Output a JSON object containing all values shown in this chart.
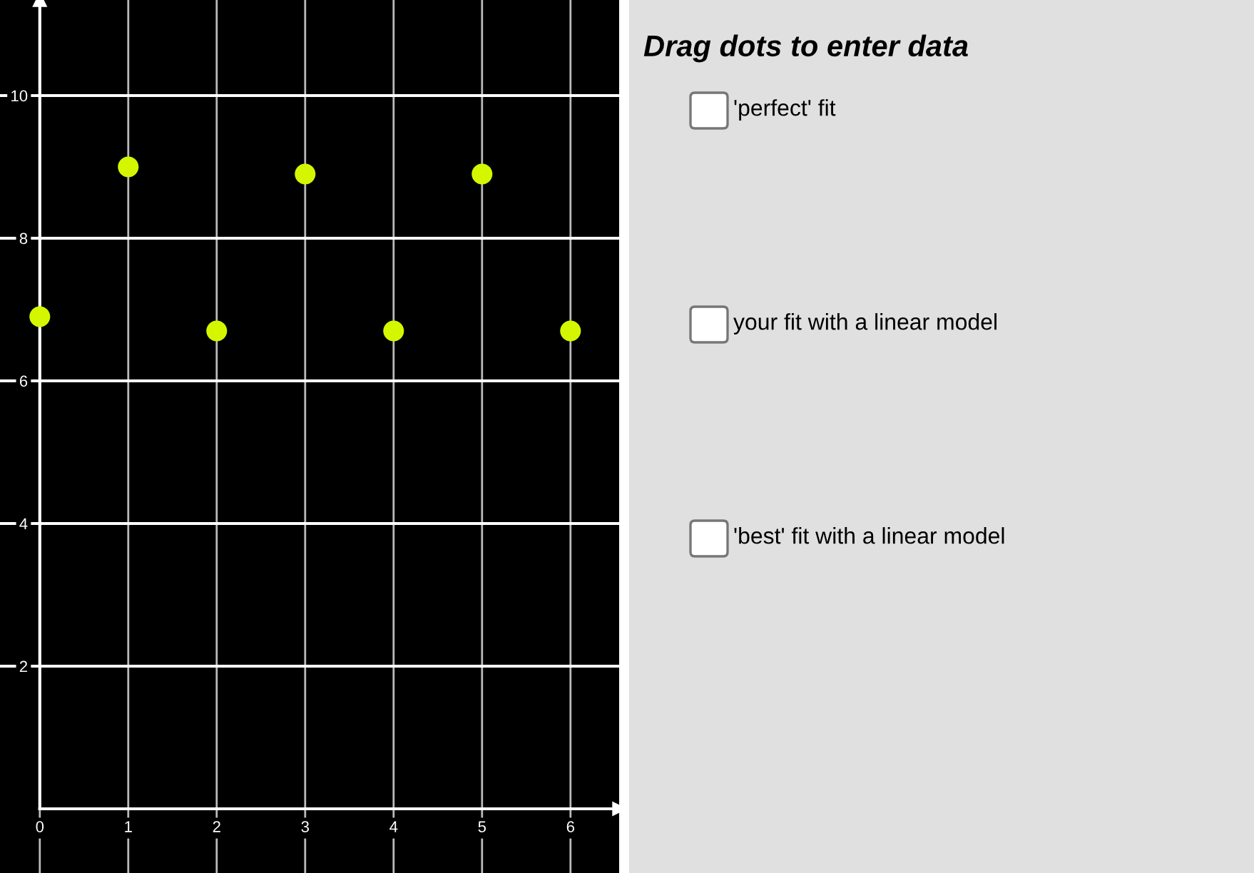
{
  "chart_data": [
    {
      "type": "scatter",
      "x": [
        0,
        1,
        2,
        3,
        4,
        5,
        6
      ],
      "values": [
        6.9,
        9.0,
        6.7,
        8.9,
        6.7,
        8.9,
        6.7
      ],
      "color": "#d4f700",
      "marker": "circle",
      "xlim": [
        -0.45,
        6.55
      ],
      "ylim": [
        -0.9,
        11.34
      ],
      "xticks": [
        0,
        1,
        2,
        3,
        4,
        5,
        6
      ],
      "yticks": [
        2,
        4,
        6,
        8,
        10
      ],
      "grid": true
    },
    {
      "type": "other",
      "title": "Drag dots to enter data",
      "annotations": [
        "'perfect' fit",
        "your fit with a linear model",
        "'best' fit with a linear model"
      ]
    }
  ]
}
